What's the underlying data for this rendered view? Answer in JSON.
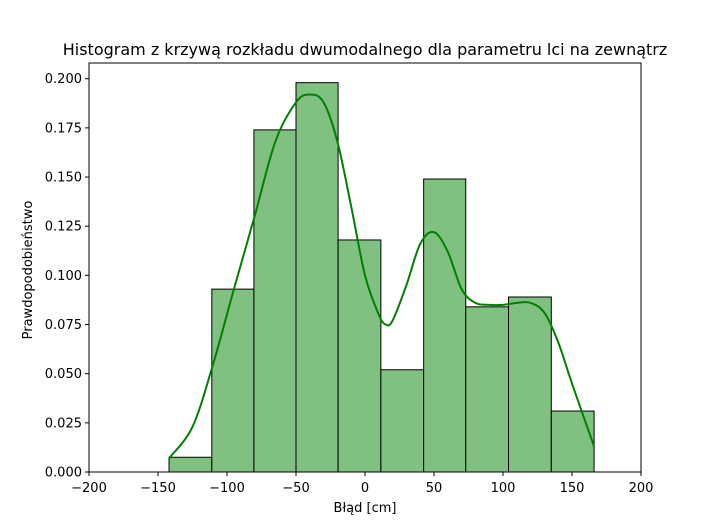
{
  "chart_data": {
    "type": "bar",
    "title": "Histogram z krzywą rozkładu dwumodalnego dla parametru lci na zewnątrz",
    "xlabel": "Błąd [cm]",
    "ylabel": "Prawdopodobieństwo",
    "xlim": [
      -200,
      200
    ],
    "ylim": [
      0,
      0.208
    ],
    "xticks": [
      -200,
      -150,
      -100,
      -50,
      0,
      50,
      100,
      150,
      200
    ],
    "xtick_labels": [
      "−200",
      "−150",
      "−100",
      "−50",
      "0",
      "50",
      "100",
      "150",
      "200"
    ],
    "yticks": [
      0,
      0.025,
      0.05,
      0.075,
      0.1,
      0.125,
      0.15,
      0.175,
      0.2
    ],
    "ytick_labels": [
      "0.000",
      "0.025",
      "0.050",
      "0.075",
      "0.100",
      "0.125",
      "0.150",
      "0.175",
      "0.200"
    ],
    "bins": [
      {
        "x0": -142,
        "x1": -111,
        "value": 0.0075
      },
      {
        "x0": -111,
        "x1": -80.5,
        "value": 0.093
      },
      {
        "x0": -80.5,
        "x1": -50,
        "value": 0.174
      },
      {
        "x0": -50,
        "x1": -19.5,
        "value": 0.198
      },
      {
        "x0": -19.5,
        "x1": 11.5,
        "value": 0.118
      },
      {
        "x0": 11.5,
        "x1": 42.5,
        "value": 0.052
      },
      {
        "x0": 42.5,
        "x1": 73,
        "value": 0.149
      },
      {
        "x0": 73,
        "x1": 104,
        "value": 0.084
      },
      {
        "x0": 104,
        "x1": 135,
        "value": 0.089
      },
      {
        "x0": 135,
        "x1": 166,
        "value": 0.031
      }
    ],
    "kde": {
      "x": [
        -142,
        -125,
        -110,
        -95,
        -80,
        -65,
        -50,
        -40,
        -30,
        -20,
        -10,
        0,
        10,
        15,
        20,
        30,
        40,
        50,
        60,
        70,
        80,
        90,
        100,
        110,
        120,
        130,
        140,
        150,
        166
      ],
      "y": [
        0.007,
        0.023,
        0.055,
        0.093,
        0.13,
        0.168,
        0.188,
        0.192,
        0.188,
        0.168,
        0.135,
        0.1,
        0.08,
        0.075,
        0.077,
        0.095,
        0.116,
        0.122,
        0.112,
        0.093,
        0.086,
        0.085,
        0.085,
        0.086,
        0.086,
        0.081,
        0.066,
        0.045,
        0.013
      ]
    },
    "bar_color": "#80c080",
    "line_color": "#008000",
    "grid": false
  }
}
